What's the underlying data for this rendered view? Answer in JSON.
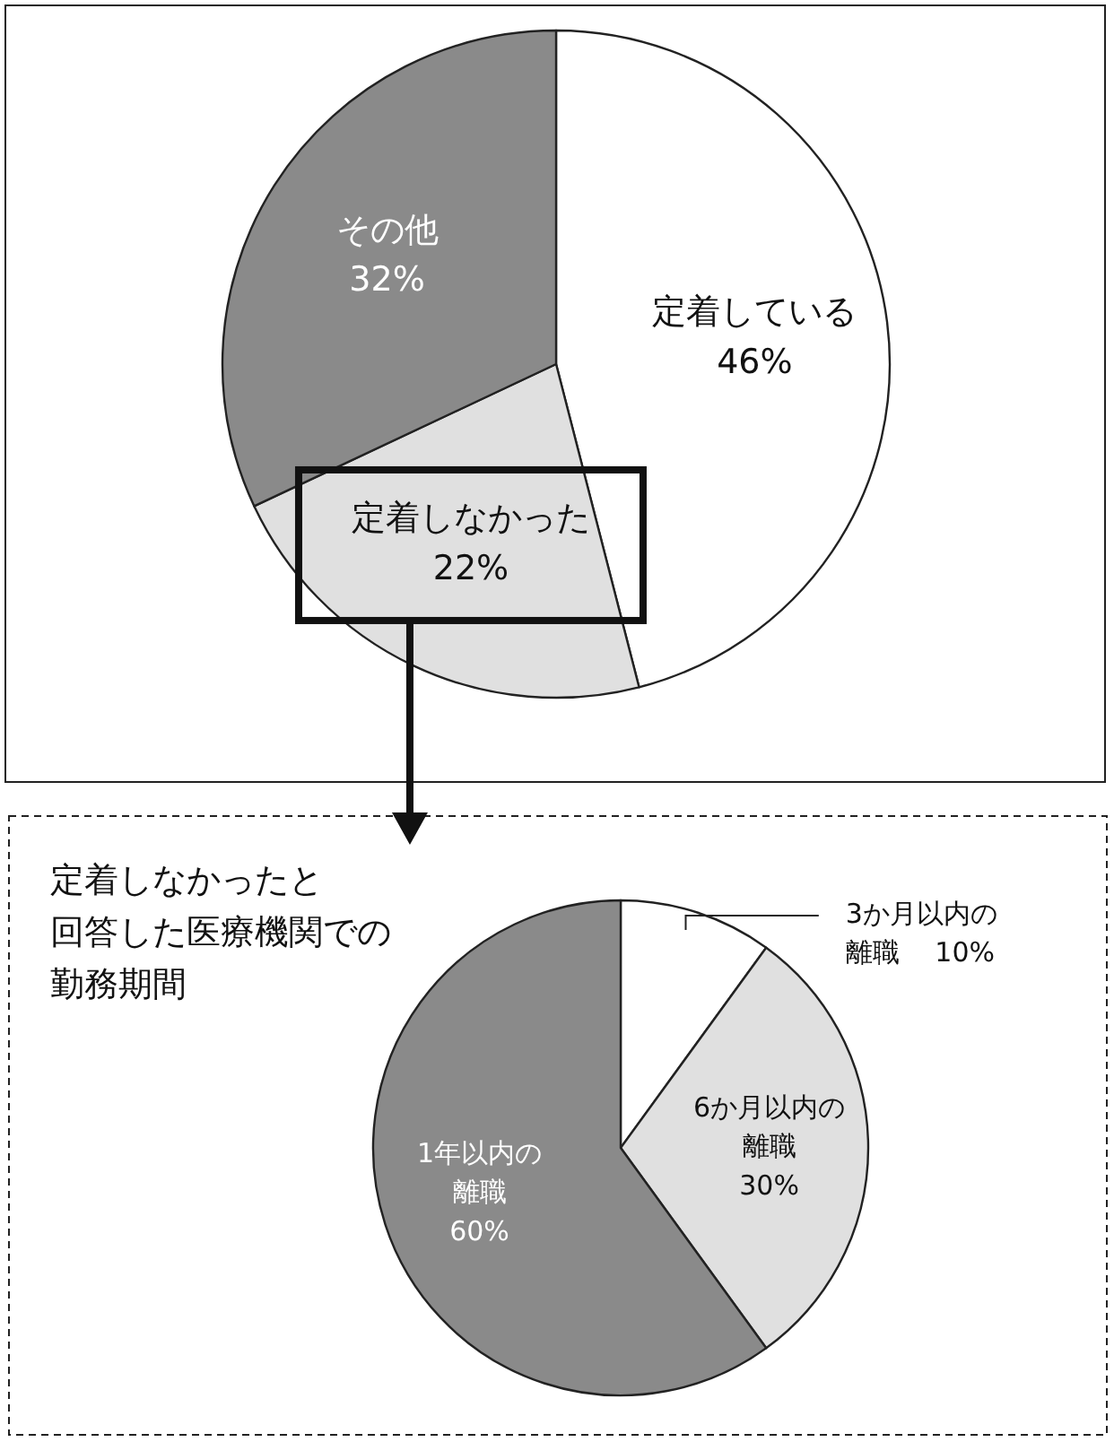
{
  "chart_data": [
    {
      "type": "pie",
      "categories": [
        "定着している",
        "定着しなかった",
        "その他"
      ],
      "values": [
        46,
        22,
        32
      ],
      "colors": [
        "#ffffff",
        "#e0e0e0",
        "#8a8a8a"
      ],
      "value_labels": [
        "46%",
        "22%",
        "32%"
      ]
    },
    {
      "type": "pie",
      "title": "定着しなかったと回答した医療機関での勤務期間",
      "categories": [
        "3か月以内の離職",
        "6か月以内の離職",
        "1年以内の離職"
      ],
      "values": [
        10,
        30,
        60
      ],
      "colors": [
        "#ffffff",
        "#e0e0e0",
        "#8a8a8a"
      ],
      "value_labels": [
        "10%",
        "30%",
        "60%"
      ]
    }
  ]
}
